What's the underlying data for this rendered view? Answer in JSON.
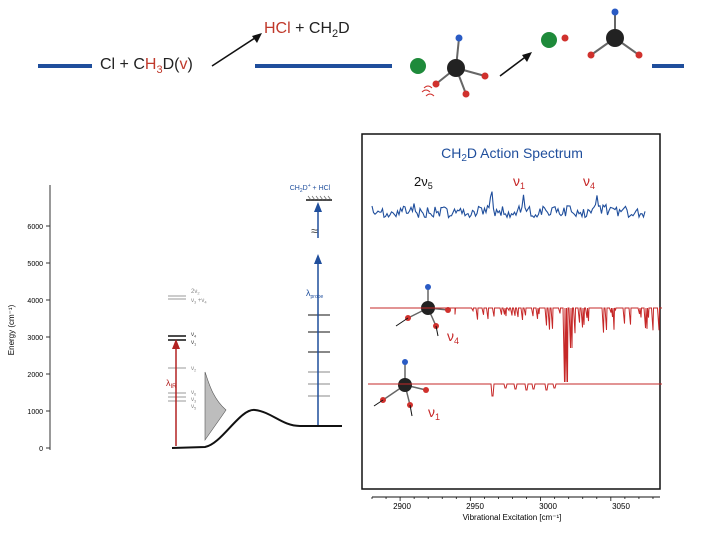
{
  "reaction": {
    "reactant": {
      "p1": "Cl + C",
      "h": "H",
      "s1": "3",
      "d": "D(",
      "v": "v",
      "close": ")"
    },
    "product": {
      "hcl": "HCl",
      "plus": " + ",
      "ch": "CH",
      "s2": "2",
      "d": "D"
    }
  },
  "energy_diagram": {
    "y_axis_label": "Energy (cm⁻¹)",
    "y_ticks": [
      "0",
      "1000",
      "2000",
      "3000",
      "4000",
      "5000",
      "6000"
    ],
    "ir_label": "λ",
    "ir_sub": "IR",
    "probe_label": "λ",
    "probe_sub": "probe",
    "top_level": {
      "a": "CH",
      "b": "2",
      "c": "D",
      "d": "+",
      "e": " + HCl"
    },
    "levels": {
      "l2v2": "2ν",
      "l2v2s": "2",
      "lv3v4a": "ν",
      "lv3v4b": "3",
      "lv3v4c": " +ν",
      "lv3v4d": "4",
      "lv4": "ν",
      "lv4s": "4",
      "lv1": "ν",
      "lv1s": "1",
      "lv2": "ν",
      "lv2s": "2",
      "lv6": "ν",
      "lv6s": "6",
      "lv3": "ν",
      "lv3s": "3",
      "lv5": "ν",
      "lv5s": "5"
    }
  },
  "chart_data": {
    "type": "line",
    "title": {
      "a": "CH",
      "b": "2",
      "c": "D Action Spectrum"
    },
    "xlabel": "Vibrational Excitation [cm⁻¹]",
    "x_ticks": [
      "2900",
      "2950",
      "3000",
      "3050"
    ],
    "xlim": [
      2880,
      3085
    ],
    "annotations": {
      "top_2v5": "2ν",
      "top_2v5_sub": "5",
      "top_v1": "ν",
      "top_v1_sub": "1",
      "top_v4": "ν",
      "top_v4_sub": "4",
      "mid_v4": "ν",
      "mid_v4_sub": "4",
      "bot_v1": "ν",
      "bot_v1_sub": "1"
    },
    "series": [
      {
        "name": "action spectrum",
        "color": "#1f4e9c"
      },
      {
        "name": "v4 band simulation",
        "color": "#c62828"
      },
      {
        "name": "v1 band simulation",
        "color": "#c62828"
      }
    ]
  },
  "colors": {
    "blue": "#1f4e9c",
    "red": "#c62828",
    "black": "#111111"
  }
}
